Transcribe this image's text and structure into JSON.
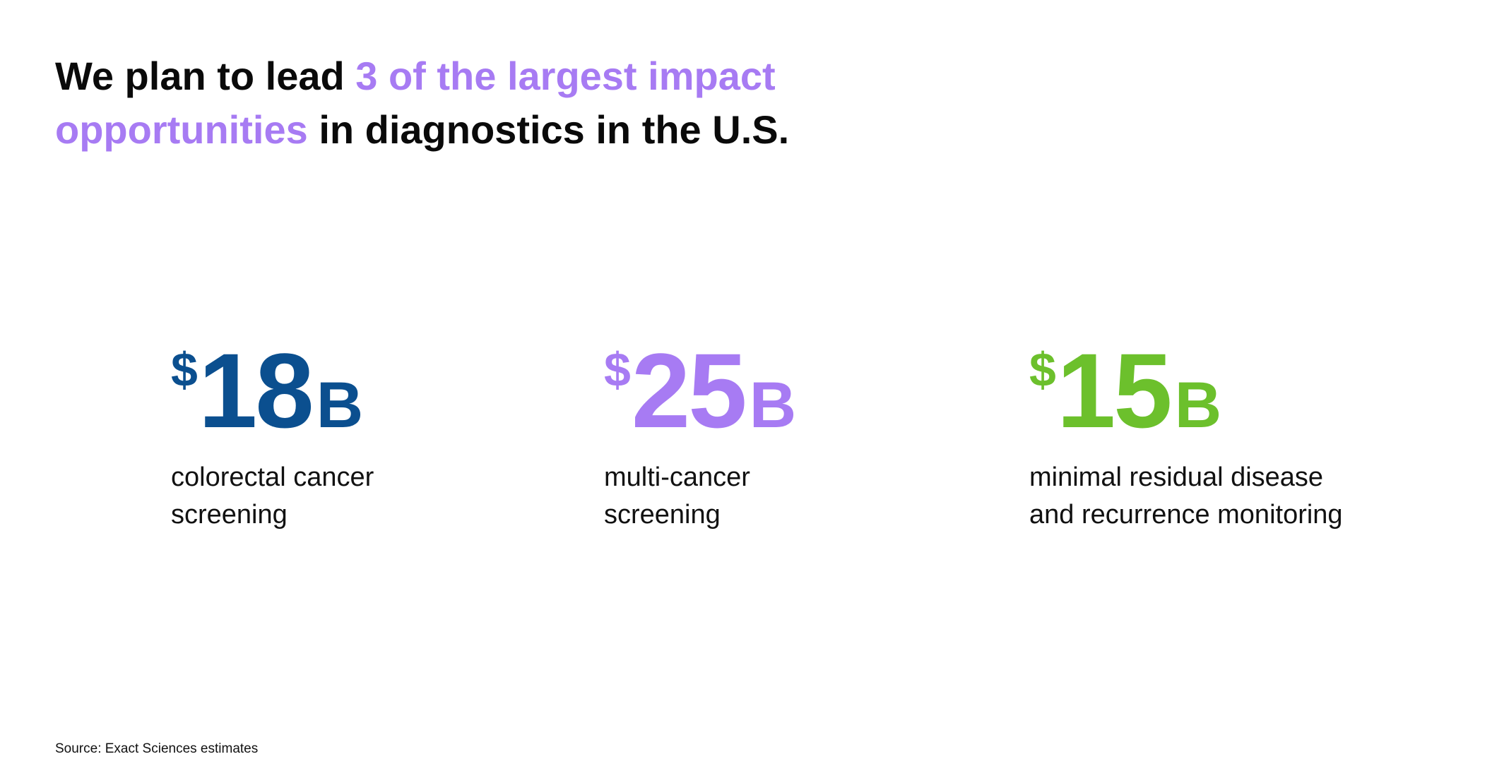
{
  "header": {
    "title": {
      "before": "We plan to lead",
      "highlight": "3 of the largest impact opportunities",
      "after": "in diagnostics in the U.S."
    }
  },
  "stats": [
    {
      "currency": "$",
      "amount": 18,
      "unit": "B",
      "color": "#0b4f8f",
      "label_lines": [
        "colorectal cancer",
        "screening"
      ]
    },
    {
      "currency": "$",
      "amount": 25,
      "unit": "B",
      "color": "#a77bf3",
      "label_lines": [
        "multi-cancer",
        "screening"
      ]
    },
    {
      "currency": "$",
      "amount": 15,
      "unit": "B",
      "color": "#6cc02c",
      "label_lines": [
        "minimal residual disease",
        "and recurrence monitoring"
      ]
    }
  ],
  "footer": {
    "source": "Source: Exact Sciences estimates"
  }
}
